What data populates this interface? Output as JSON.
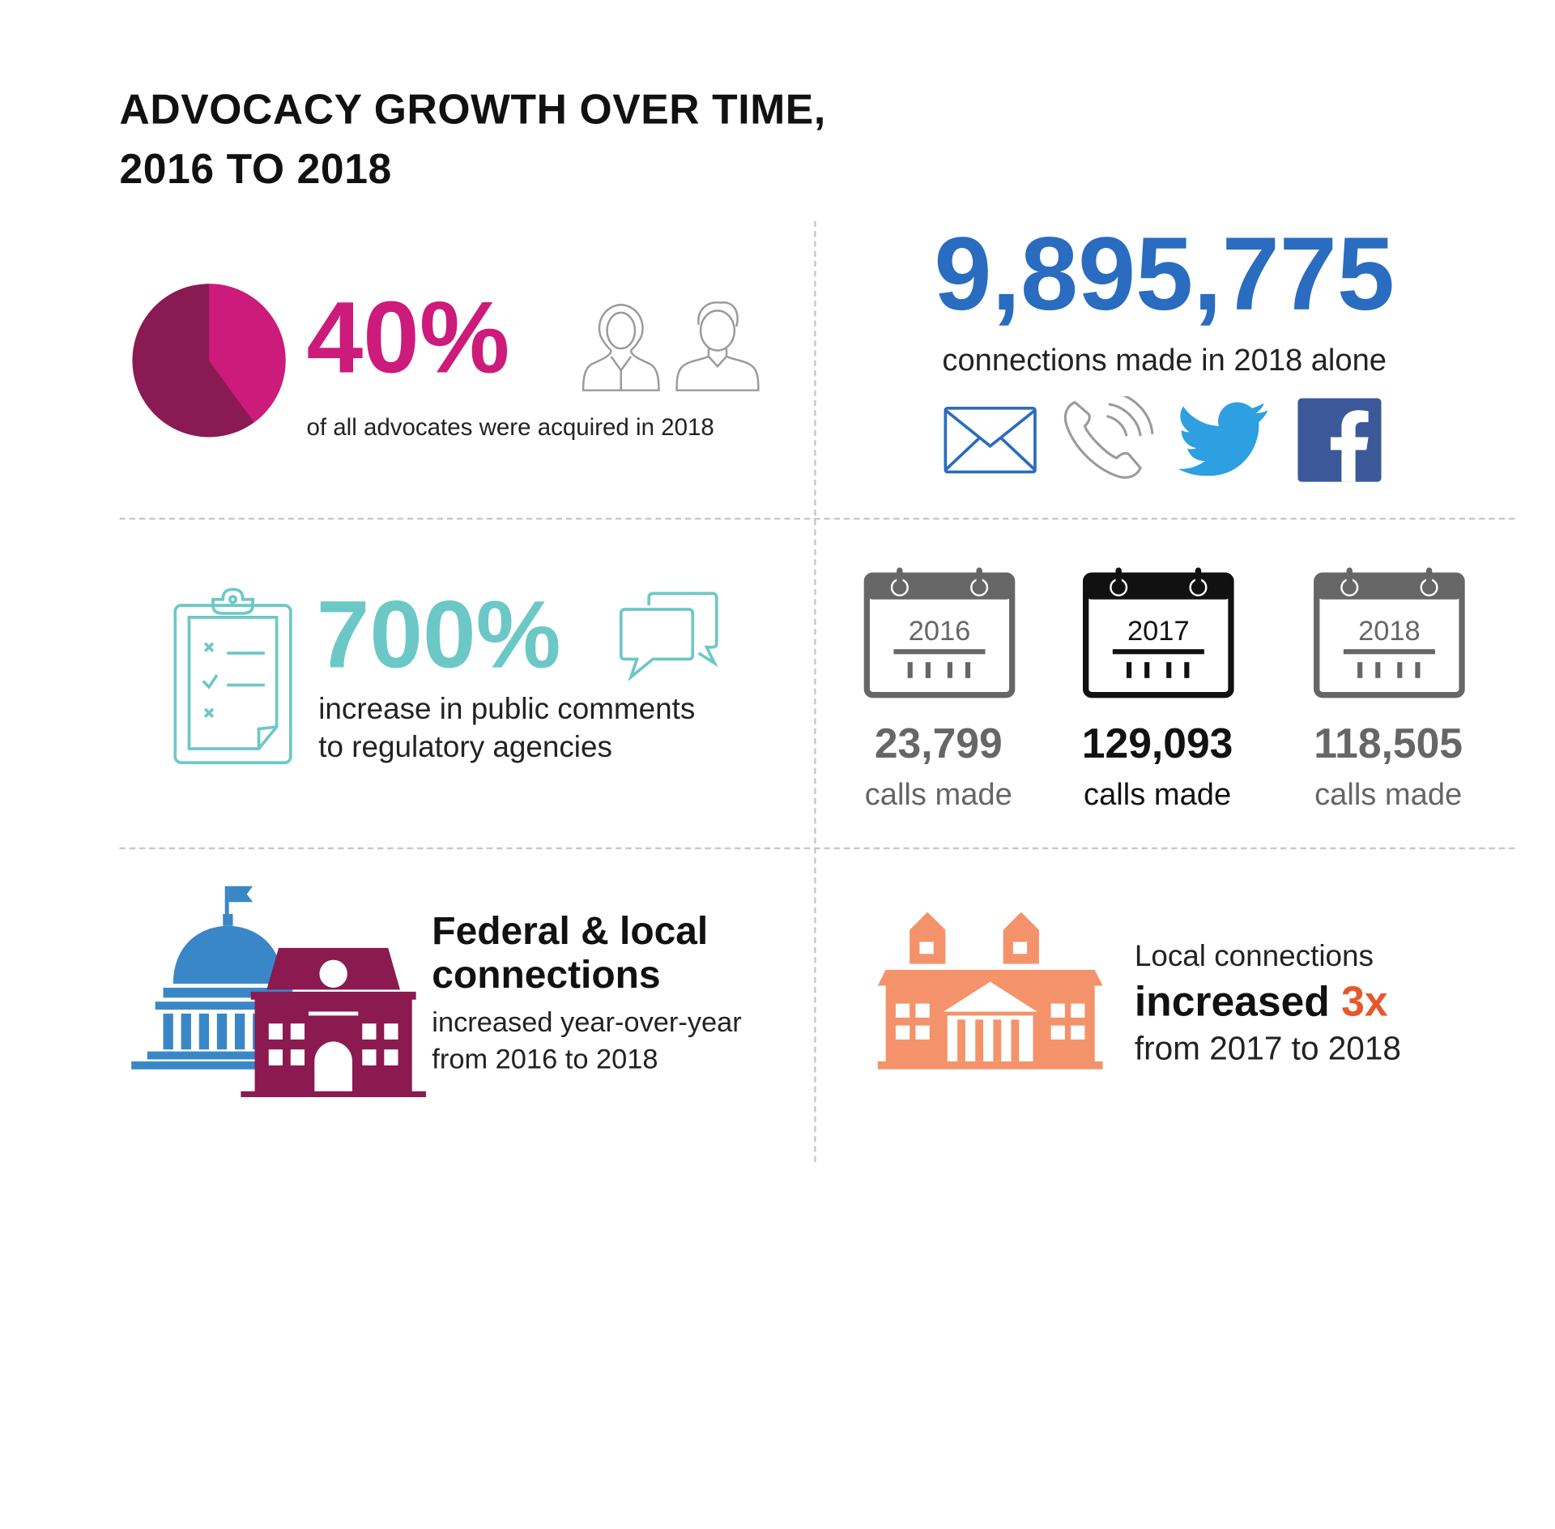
{
  "title": {
    "line1": "ADVOCACY GROWTH OVER TIME,",
    "line2": "2016 TO 2018"
  },
  "advocates": {
    "value": "40%",
    "fraction": 0.4,
    "caption": "of all advocates were acquired in 2018",
    "icons": [
      "female-user-icon",
      "male-user-icon"
    ]
  },
  "connections": {
    "value": "9,895,775",
    "caption": "connections made in 2018 alone",
    "icons": [
      "email-icon",
      "phone-icon",
      "twitter-icon",
      "facebook-icon"
    ]
  },
  "comments": {
    "value": "700%",
    "caption_line1": "increase in public comments",
    "caption_line2": "to regulatory agencies",
    "icons": [
      "clipboard-checklist-icon",
      "chat-bubbles-icon"
    ]
  },
  "calls": [
    {
      "year": "2016",
      "value": "23,799",
      "label": "calls made",
      "color": "#666666"
    },
    {
      "year": "2017",
      "value": "129,093",
      "label": "calls made",
      "color": "#111111"
    },
    {
      "year": "2018",
      "value": "118,505",
      "label": "calls made",
      "color": "#666666"
    }
  ],
  "federal": {
    "heading_line1": "Federal & local",
    "heading_line2": "connections",
    "sub_line1": "increased year-over-year",
    "sub_line2": "from 2016 to 2018",
    "icons": [
      "capitol-building-icon",
      "city-hall-icon"
    ]
  },
  "local": {
    "line1": "Local connections",
    "line2_prefix": "increased",
    "line2_accent": "3x",
    "line3": "from 2017 to 2018",
    "icons": [
      "local-building-icon"
    ]
  },
  "colors": {
    "magenta": "#cc1b7b",
    "plum": "#8a1a52",
    "blue": "#2a6cbf",
    "teal": "#6cc8c6",
    "orange": "#f4936b",
    "accent_orange": "#e8562a",
    "capitol_blue": "#3a87c8",
    "city_hall_plum": "#8a1a50"
  }
}
